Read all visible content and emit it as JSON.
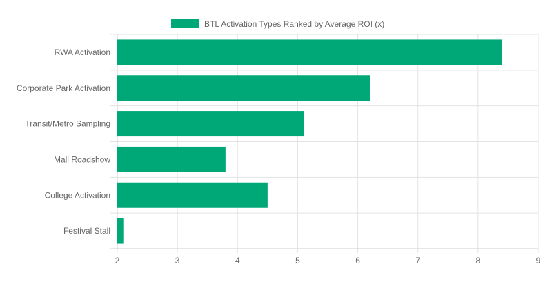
{
  "chart_data": {
    "type": "bar",
    "orientation": "horizontal",
    "categories": [
      "RWA Activation",
      "Corporate Park Activation",
      "Transit/Metro Sampling",
      "Mall Roadshow",
      "College Activation",
      "Festival Stall"
    ],
    "series": [
      {
        "name": "BTL Activation Types Ranked by Average ROI (x)",
        "values": [
          8.4,
          6.2,
          5.1,
          3.8,
          4.5,
          2.1
        ],
        "color": "#00a878"
      }
    ],
    "xlim": [
      2,
      9
    ],
    "x_ticks": [
      "2",
      "3",
      "4",
      "5",
      "6",
      "7",
      "8",
      "9"
    ],
    "grid": true,
    "legend": "top-center"
  }
}
